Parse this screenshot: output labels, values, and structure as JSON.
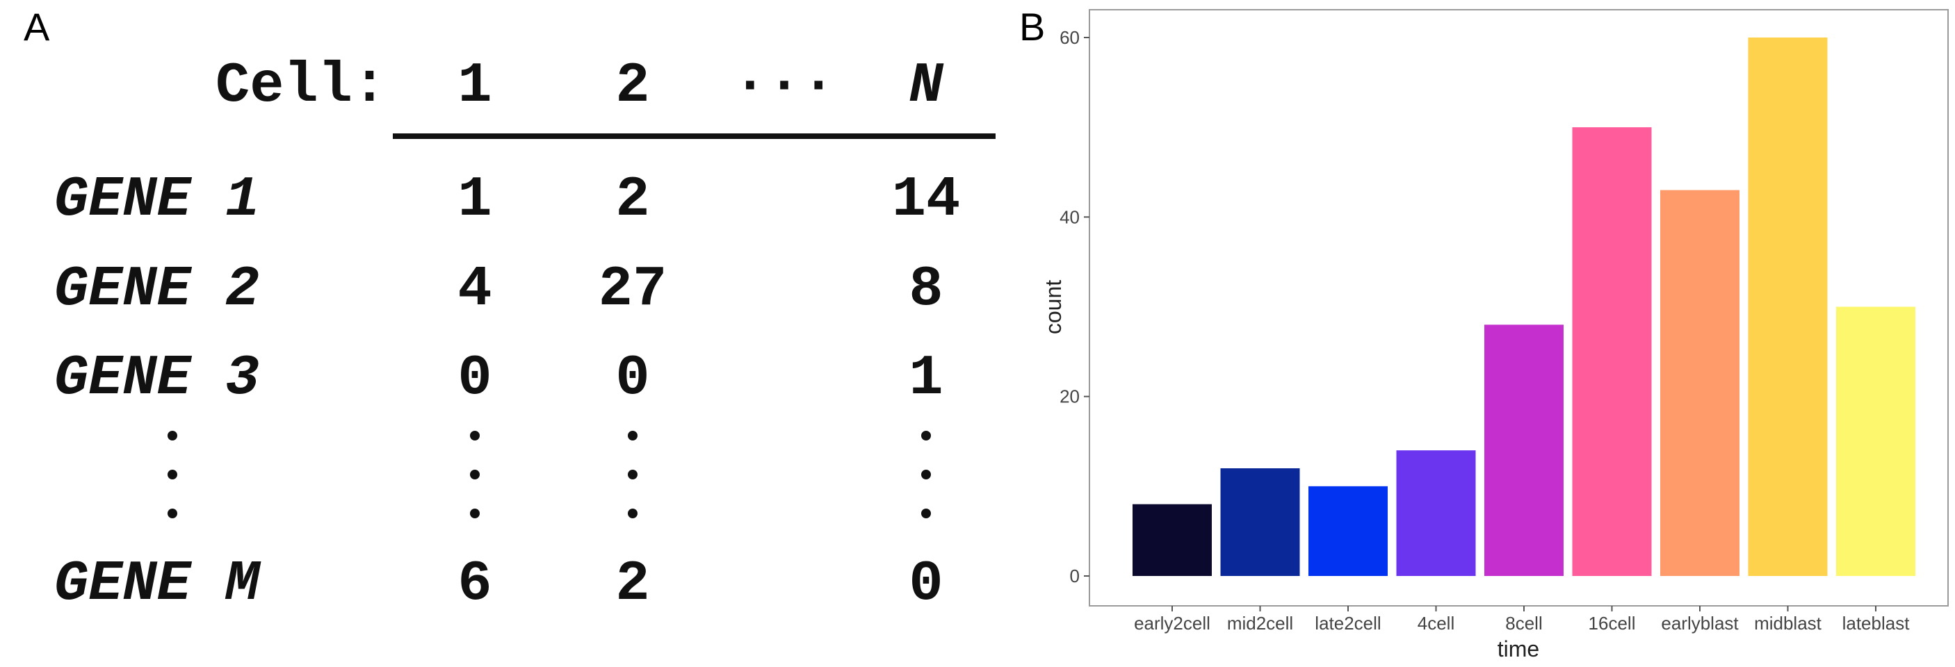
{
  "panel_labels": {
    "a": "A",
    "b": "B"
  },
  "matrix": {
    "header": {
      "label": "Cell:",
      "cols": [
        "1",
        "2",
        "···",
        "N"
      ]
    },
    "rows": [
      {
        "gene": "GENE 1",
        "values": [
          "1",
          "2",
          "14"
        ]
      },
      {
        "gene": "GENE 2",
        "values": [
          "4",
          "27",
          "8"
        ]
      },
      {
        "gene": "GENE 3",
        "values": [
          "0",
          "0",
          "1"
        ]
      },
      {
        "gene": "GENE M",
        "values": [
          "6",
          "2",
          "0"
        ]
      }
    ]
  },
  "chart_data": {
    "type": "bar",
    "categories": [
      "early2cell",
      "mid2cell",
      "late2cell",
      "4cell",
      "8cell",
      "16cell",
      "earlyblast",
      "midblast",
      "lateblast"
    ],
    "values": [
      8,
      12,
      10,
      14,
      28,
      50,
      43,
      60,
      30
    ],
    "colors": [
      "#0b0a2e",
      "#0a2898",
      "#0233f0",
      "#6b35ef",
      "#c42fce",
      "#ff5c9c",
      "#ff9a6a",
      "#ffd24d",
      "#fdf76d"
    ],
    "xlabel": "time",
    "ylabel": "count",
    "ylim": [
      0,
      63
    ],
    "yticks": [
      0,
      20,
      40,
      60
    ],
    "grid": false
  }
}
